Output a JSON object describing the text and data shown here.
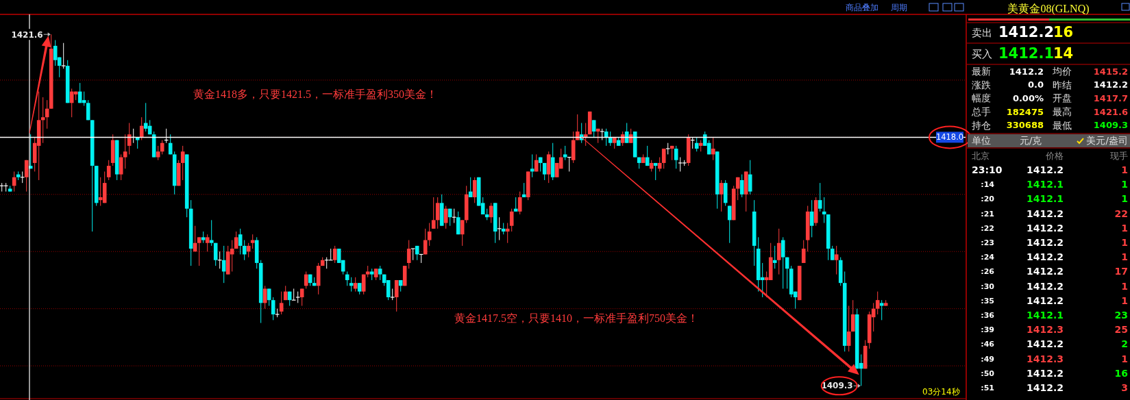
{
  "chart_data": [
    {
      "type": "candlestick",
      "categories": [
        null,
        null,
        null,
        null,
        null,
        null,
        null,
        null,
        null,
        null,
        null,
        null,
        null,
        null,
        null,
        null,
        null,
        null,
        null,
        null,
        null,
        null,
        null,
        null,
        null,
        null,
        null,
        null,
        null,
        null,
        null,
        null,
        null,
        null,
        null,
        null,
        null,
        null,
        null,
        null,
        null,
        null,
        null,
        null,
        null,
        null,
        null,
        null,
        null,
        null,
        null,
        null,
        null,
        null,
        null,
        null,
        null,
        null,
        null,
        null,
        null,
        null,
        null,
        null,
        null,
        null,
        null,
        null,
        null,
        null,
        null,
        null,
        null,
        null,
        null,
        null,
        null,
        null,
        null,
        null,
        null,
        null,
        null,
        null,
        null,
        null,
        null,
        null,
        null,
        null,
        null,
        null,
        null,
        null,
        null,
        null,
        null,
        null,
        null,
        null,
        null,
        null,
        null,
        null,
        null,
        null,
        null,
        null,
        null,
        null,
        null,
        null,
        null,
        null,
        null,
        null,
        null,
        null,
        null,
        null,
        null,
        null,
        null,
        null,
        null,
        null,
        null,
        null,
        null,
        null,
        null,
        null,
        null,
        null,
        null,
        null,
        null,
        null,
        null,
        null,
        null,
        null,
        null,
        null,
        null,
        null,
        null,
        null,
        null,
        null,
        null,
        null,
        null,
        null,
        null,
        null,
        null,
        null,
        null,
        null,
        null,
        null,
        null,
        null,
        null,
        null,
        null,
        null,
        null,
        null,
        null,
        null,
        null,
        null,
        null,
        null,
        null,
        null,
        null,
        null,
        null,
        null,
        null,
        null,
        null,
        null,
        null,
        null,
        null,
        null,
        null,
        null,
        null,
        null,
        null,
        null,
        null,
        null,
        null,
        null,
        null,
        null,
        null,
        null,
        null,
        null,
        null,
        null,
        null,
        null,
        null,
        null,
        null,
        null,
        null,
        null
      ],
      "ohlc": [
        [
          1416.3,
          1416.4,
          1416.1,
          1416.3
        ],
        [
          1416.3,
          1416.4,
          1416.1,
          1416.3
        ],
        [
          1416.2,
          1416.3,
          1416.1,
          1416.1
        ],
        [
          1416.3,
          1416.8,
          1416.1,
          1416.6
        ],
        [
          1416.7,
          1416.8,
          1416.5,
          1416.6
        ],
        [
          1416.6,
          1416.8,
          1416.4,
          1416.6
        ],
        [
          1416.6,
          1417.2,
          1416.1,
          1417.2
        ],
        [
          1417.0,
          1418.1,
          1416.9,
          1416.9
        ],
        [
          1417.1,
          1418.0,
          1416.8,
          1417.8
        ],
        [
          1417.7,
          1419.6,
          1416.5,
          1418.6
        ],
        [
          1418.6,
          1419.4,
          1417.8,
          1418.7
        ],
        [
          1418.7,
          1419.3,
          1418.3,
          1419.0
        ],
        [
          1419.0,
          1421.6,
          1419.0,
          1421.1
        ],
        [
          1421.2,
          1421.4,
          1420.5,
          1420.7
        ],
        [
          1420.8,
          1420.8,
          1420.1,
          1420.5
        ],
        [
          1420.5,
          1421.3,
          1420.4,
          1420.5
        ],
        [
          1420.5,
          1420.7,
          1419.2,
          1419.2
        ],
        [
          1419.2,
          1419.7,
          1418.7,
          1419.6
        ],
        [
          1419.5,
          1419.6,
          1419.3,
          1419.6
        ],
        [
          1419.6,
          1419.9,
          1419.2,
          1419.2
        ],
        [
          1419.3,
          1419.6,
          1419.1,
          1419.2
        ],
        [
          1419.2,
          1419.3,
          1418.6,
          1418.6
        ],
        [
          1418.6,
          1418.6,
          1414.7,
          1417.0
        ],
        [
          1417.0,
          1417.0,
          1415.6,
          1415.7
        ],
        [
          1415.8,
          1416.6,
          1415.6,
          1415.9
        ],
        [
          1415.7,
          1416.8,
          1415.7,
          1416.4
        ],
        [
          1416.6,
          1417.2,
          1416.5,
          1417.0
        ],
        [
          1417.1,
          1418.1,
          1417.0,
          1417.9
        ],
        [
          1417.9,
          1417.9,
          1416.5,
          1416.7
        ],
        [
          1416.7,
          1417.4,
          1416.5,
          1417.3
        ],
        [
          1417.3,
          1418.1,
          1416.9,
          1417.5
        ],
        [
          1417.7,
          1418.5,
          1417.4,
          1418.1
        ],
        [
          1418.0,
          1418.3,
          1417.8,
          1418.0
        ],
        [
          1418.0,
          1418.0,
          1417.6,
          1417.9
        ],
        [
          1418.0,
          1418.7,
          1417.9,
          1418.4
        ],
        [
          1418.5,
          1419.2,
          1418.2,
          1418.3
        ],
        [
          1418.4,
          1418.6,
          1418.1,
          1418.1
        ],
        [
          1418.1,
          1418.2,
          1417.3,
          1417.3
        ],
        [
          1417.3,
          1417.7,
          1417.2,
          1417.5
        ],
        [
          1417.5,
          1417.9,
          1417.4,
          1417.8
        ],
        [
          1417.9,
          1418.3,
          1417.8,
          1417.9
        ],
        [
          1417.8,
          1418.1,
          1417.4,
          1417.4
        ],
        [
          1417.4,
          1417.5,
          1416.0,
          1416.3
        ],
        [
          1416.3,
          1417.2,
          1416.3,
          1417.1
        ],
        [
          1417.1,
          1417.7,
          1416.5,
          1417.5
        ],
        [
          1417.4,
          1417.4,
          1415.2,
          1415.5
        ],
        [
          1415.5,
          1415.8,
          1413.5,
          1414.1
        ],
        [
          1414.0,
          1414.9,
          1414.0,
          1414.3
        ],
        [
          1414.3,
          1414.5,
          1413.5,
          1414.5
        ],
        [
          1414.5,
          1414.7,
          1414.3,
          1414.4
        ],
        [
          1414.3,
          1414.6,
          1414.0,
          1414.5
        ],
        [
          1414.4,
          1415.1,
          1414.2,
          1414.3
        ],
        [
          1414.3,
          1414.3,
          1413.5,
          1413.7
        ],
        [
          1413.7,
          1414.0,
          1413.4,
          1413.7
        ],
        [
          1413.7,
          1414.2,
          1412.9,
          1413.3
        ],
        [
          1413.2,
          1414.2,
          1413.2,
          1414.0
        ],
        [
          1413.9,
          1414.4,
          1413.3,
          1414.1
        ],
        [
          1414.1,
          1414.7,
          1414.1,
          1414.5
        ],
        [
          1414.6,
          1414.8,
          1413.9,
          1414.2
        ],
        [
          1414.2,
          1414.4,
          1413.7,
          1413.9
        ],
        [
          1414.0,
          1414.3,
          1413.8,
          1414.2
        ],
        [
          1414.3,
          1414.6,
          1414.1,
          1414.4
        ],
        [
          1414.4,
          1414.5,
          1413.4,
          1413.6
        ],
        [
          1413.6,
          1413.7,
          1411.5,
          1412.2
        ],
        [
          1412.2,
          1412.8,
          1412.0,
          1412.7
        ],
        [
          1412.7,
          1412.7,
          1412.1,
          1412.3
        ],
        [
          1412.3,
          1412.4,
          1411.6,
          1411.8
        ],
        [
          1411.8,
          1412.0,
          1411.7,
          1411.8
        ],
        [
          1411.9,
          1412.6,
          1411.8,
          1412.2
        ],
        [
          1412.3,
          1412.8,
          1412.3,
          1412.6
        ],
        [
          1412.6,
          1412.6,
          1412.1,
          1412.3
        ],
        [
          1412.3,
          1412.7,
          1412.3,
          1412.3
        ],
        [
          1412.4,
          1412.6,
          1412.2,
          1412.4
        ],
        [
          1412.4,
          1412.7,
          1412.1,
          1412.7
        ],
        [
          1412.8,
          1413.3,
          1412.7,
          1413.2
        ],
        [
          1413.2,
          1413.2,
          1412.8,
          1412.9
        ],
        [
          1412.9,
          1413.1,
          1412.8,
          1412.8
        ],
        [
          1412.8,
          1413.6,
          1412.5,
          1413.5
        ],
        [
          1413.5,
          1413.8,
          1413.5,
          1413.7
        ],
        [
          1413.7,
          1413.8,
          1413.4,
          1413.7
        ],
        [
          1413.7,
          1414.1,
          1413.7,
          1413.7
        ],
        [
          1413.7,
          1414.2,
          1413.6,
          1414.1
        ],
        [
          1414.1,
          1414.1,
          1413.6,
          1413.6
        ],
        [
          1413.7,
          1413.7,
          1413.2,
          1413.3
        ],
        [
          1413.2,
          1413.3,
          1412.8,
          1413.0
        ],
        [
          1412.9,
          1413.1,
          1412.6,
          1412.8
        ],
        [
          1412.7,
          1413.1,
          1412.6,
          1412.9
        ],
        [
          1412.9,
          1412.9,
          1412.5,
          1412.6
        ],
        [
          1412.6,
          1413.2,
          1412.5,
          1413.2
        ],
        [
          1413.2,
          1413.5,
          1413.1,
          1413.3
        ],
        [
          1413.3,
          1413.4,
          1413.0,
          1413.2
        ],
        [
          1413.1,
          1413.4,
          1413.0,
          1413.4
        ],
        [
          1413.4,
          1413.5,
          1413.0,
          1413.2
        ],
        [
          1413.2,
          1413.2,
          1412.8,
          1412.9
        ],
        [
          1413.0,
          1413.0,
          1412.3,
          1412.4
        ],
        [
          1412.4,
          1412.7,
          1412.3,
          1412.4
        ],
        [
          1412.4,
          1413.0,
          1411.9,
          1413.0
        ],
        [
          1413.0,
          1413.0,
          1412.6,
          1412.8
        ],
        [
          1412.8,
          1413.5,
          1412.8,
          1413.5
        ],
        [
          1413.6,
          1414.4,
          1413.4,
          1414.1
        ],
        [
          1414.1,
          1414.1,
          1413.7,
          1414.1
        ],
        [
          1414.2,
          1414.2,
          1413.7,
          1413.9
        ],
        [
          1413.9,
          1413.9,
          1413.6,
          1413.9
        ],
        [
          1413.9,
          1414.8,
          1413.9,
          1414.4
        ],
        [
          1414.4,
          1415.0,
          1414.2,
          1414.7
        ],
        [
          1414.8,
          1415.9,
          1414.8,
          1415.1
        ],
        [
          1415.1,
          1415.9,
          1414.8,
          1415.7
        ],
        [
          1415.7,
          1416.0,
          1414.9,
          1414.9
        ],
        [
          1415.0,
          1415.6,
          1414.8,
          1415.5
        ],
        [
          1415.5,
          1415.5,
          1414.9,
          1415.2
        ],
        [
          1415.2,
          1415.5,
          1415.0,
          1415.2
        ],
        [
          1415.2,
          1415.4,
          1414.6,
          1414.6
        ],
        [
          1414.6,
          1415.1,
          1414.2,
          1415.1
        ],
        [
          1415.1,
          1416.3,
          1415.0,
          1416.0
        ],
        [
          1416.1,
          1416.6,
          1415.9,
          1415.9
        ],
        [
          1415.9,
          1416.6,
          1415.7,
          1416.5
        ],
        [
          1416.6,
          1416.6,
          1415.6,
          1415.6
        ],
        [
          1415.7,
          1415.9,
          1415.3,
          1415.3
        ],
        [
          1415.3,
          1415.5,
          1415.1,
          1415.2
        ],
        [
          1415.2,
          1415.7,
          1415.0,
          1415.6
        ],
        [
          1415.7,
          1415.7,
          1414.3,
          1414.7
        ],
        [
          1414.8,
          1415.2,
          1414.4,
          1414.8
        ],
        [
          1414.8,
          1415.0,
          1414.6,
          1414.7
        ],
        [
          1414.7,
          1415.0,
          1414.3,
          1414.8
        ],
        [
          1414.9,
          1415.5,
          1414.7,
          1415.4
        ],
        [
          1415.5,
          1415.9,
          1415.4,
          1415.4
        ],
        [
          1415.4,
          1416.1,
          1415.3,
          1415.9
        ],
        [
          1416.0,
          1416.4,
          1415.9,
          1415.9
        ],
        [
          1415.9,
          1416.8,
          1415.8,
          1416.8
        ],
        [
          1416.9,
          1417.4,
          1416.6,
          1416.8
        ],
        [
          1416.8,
          1417.4,
          1416.8,
          1417.2
        ],
        [
          1417.3,
          1417.3,
          1416.8,
          1417.1
        ],
        [
          1417.1,
          1417.1,
          1416.5,
          1416.7
        ],
        [
          1416.7,
          1417.5,
          1416.4,
          1417.4
        ],
        [
          1417.3,
          1417.8,
          1416.5,
          1416.6
        ],
        [
          1416.6,
          1417.1,
          1416.6,
          1417.1
        ],
        [
          1416.9,
          1417.6,
          1416.9,
          1417.3
        ],
        [
          1417.4,
          1417.7,
          1417.2,
          1417.3
        ],
        [
          1417.3,
          1417.3,
          1416.8,
          1417.3
        ],
        [
          1417.2,
          1418.2,
          1417.1,
          1417.9
        ],
        [
          1417.9,
          1418.8,
          1417.9,
          1418.2
        ],
        [
          1418.1,
          1418.5,
          1417.8,
          1417.9
        ],
        [
          1418.0,
          1418.5,
          1417.7,
          1418.1
        ],
        [
          1418.1,
          1418.9,
          1418.1,
          1418.9
        ],
        [
          1418.6,
          1418.6,
          1418.0,
          1418.2
        ],
        [
          1418.2,
          1418.3,
          1417.8,
          1418.3
        ],
        [
          1418.2,
          1418.3,
          1417.9,
          1418.2
        ],
        [
          1418.2,
          1418.3,
          1417.7,
          1418.0
        ],
        [
          1418.0,
          1418.2,
          1417.7,
          1417.8
        ],
        [
          1417.8,
          1418.0,
          1417.6,
          1418.0
        ],
        [
          1417.9,
          1418.0,
          1417.7,
          1417.7
        ],
        [
          1417.8,
          1418.2,
          1417.7,
          1418.1
        ],
        [
          1418.2,
          1418.5,
          1417.8,
          1417.8
        ],
        [
          1417.8,
          1418.3,
          1417.8,
          1418.1
        ],
        [
          1418.2,
          1418.2,
          1417.3,
          1417.3
        ],
        [
          1417.3,
          1417.3,
          1416.9,
          1417.1
        ],
        [
          1417.1,
          1417.4,
          1417.1,
          1417.3
        ],
        [
          1417.3,
          1417.7,
          1417.0,
          1417.0
        ],
        [
          1416.9,
          1417.2,
          1416.8,
          1417.1
        ],
        [
          1417.1,
          1417.1,
          1416.5,
          1417.0
        ],
        [
          1416.9,
          1417.3,
          1416.8,
          1417.1
        ],
        [
          1417.1,
          1417.6,
          1416.9,
          1417.6
        ],
        [
          1417.6,
          1417.8,
          1417.4,
          1417.6
        ],
        [
          1417.6,
          1417.7,
          1417.2,
          1417.7
        ],
        [
          1417.6,
          1417.7,
          1416.9,
          1417.2
        ],
        [
          1417.1,
          1417.3,
          1416.8,
          1417.1
        ],
        [
          1417.1,
          1417.2,
          1417.0,
          1417.1
        ],
        [
          1417.1,
          1418.1,
          1417.0,
          1418.0
        ],
        [
          1417.9,
          1418.0,
          1417.6,
          1417.9
        ],
        [
          1417.8,
          1418.0,
          1417.5,
          1417.6
        ],
        [
          1417.7,
          1417.9,
          1417.5,
          1417.8
        ],
        [
          1418.1,
          1418.2,
          1417.7,
          1417.7
        ],
        [
          1417.8,
          1417.9,
          1417.4,
          1417.4
        ],
        [
          1417.4,
          1418.0,
          1417.2,
          1417.6
        ],
        [
          1417.5,
          1417.5,
          1415.5,
          1416.0
        ],
        [
          1416.0,
          1416.5,
          1415.4,
          1416.4
        ],
        [
          1416.4,
          1416.5,
          1415.6,
          1415.7
        ],
        [
          1415.6,
          1415.6,
          1414.3,
          1415.1
        ],
        [
          1415.1,
          1416.3,
          1415.1,
          1416.2
        ],
        [
          1416.2,
          1416.6,
          1415.8,
          1416.6
        ],
        [
          1416.5,
          1416.7,
          1415.9,
          1416.0
        ],
        [
          1416.0,
          1416.8,
          1415.4,
          1416.8
        ],
        [
          1416.7,
          1417.2,
          1416.0,
          1416.1
        ],
        [
          1415.4,
          1415.8,
          1413.5,
          1414.2
        ],
        [
          1414.1,
          1414.5,
          1412.6,
          1413.0
        ],
        [
          1413.1,
          1413.6,
          1412.4,
          1413.0
        ],
        [
          1413.0,
          1413.3,
          1412.4,
          1413.1
        ],
        [
          1413.0,
          1414.3,
          1413.0,
          1413.8
        ],
        [
          1413.7,
          1414.2,
          1413.4,
          1413.6
        ],
        [
          1413.7,
          1414.8,
          1413.2,
          1414.3
        ],
        [
          1414.4,
          1414.5,
          1412.7,
          1413.8
        ],
        [
          1413.8,
          1413.8,
          1412.7,
          1413.4
        ],
        [
          1413.4,
          1413.5,
          1412.4,
          1412.5
        ],
        [
          1412.6,
          1412.6,
          1412.0,
          1412.4
        ],
        [
          1412.3,
          1413.5,
          1412.3,
          1413.5
        ],
        [
          1413.6,
          1414.4,
          1413.6,
          1414.1
        ],
        [
          1414.4,
          1415.6,
          1414.0,
          1415.4
        ],
        [
          1415.4,
          1415.8,
          1414.5,
          1414.9
        ],
        [
          1415.0,
          1415.9,
          1414.9,
          1415.8
        ],
        [
          1415.8,
          1416.4,
          1415.4,
          1415.5
        ],
        [
          1415.4,
          1415.9,
          1415.0,
          1415.3
        ],
        [
          1415.3,
          1415.3,
          1413.7,
          1414.1
        ],
        [
          1414.1,
          1414.2,
          1413.7,
          1413.7
        ],
        [
          1413.7,
          1414.2,
          1413.2,
          1413.9
        ],
        [
          1413.7,
          1413.8,
          1412.8,
          1412.9
        ],
        [
          1412.9,
          1413.3,
          1410.5,
          1410.7
        ],
        [
          1410.7,
          1412.1,
          1410.5,
          1411.2
        ],
        [
          1411.2,
          1412.3,
          1411.2,
          1411.8
        ],
        [
          1411.8,
          1412.0,
          1409.9,
          1409.9
        ],
        [
          1410.1,
          1410.4,
          1409.3,
          1409.9
        ],
        [
          1409.9,
          1410.9,
          1409.9,
          1410.7
        ],
        [
          1410.8,
          1411.9,
          1410.6,
          1411.8
        ],
        [
          1411.7,
          1412.2,
          1411.2,
          1412.0
        ],
        [
          1412.0,
          1412.6,
          1411.8,
          1412.3
        ],
        [
          1412.2,
          1412.3,
          1411.6,
          1412.1
        ],
        [
          1412.1,
          1412.3,
          1412.1,
          1412.2
        ]
      ],
      "ylim": [
        1408.9,
        1422.3
      ],
      "yticks": [
        {
          "value": 1410,
          "label": null
        },
        {
          "value": 1412,
          "label": null
        },
        {
          "value": 1414,
          "label": null
        },
        {
          "value": 1416,
          "label": null
        },
        {
          "value": 1418,
          "label": null
        },
        {
          "value": 1420,
          "label": null
        }
      ],
      "grid": "y",
      "ref_lines": [
        {
          "axis": "y",
          "value": 1418.0,
          "label": "1418.0",
          "color": "#ffffff"
        }
      ],
      "annotations": [
        "1421.6",
        "1409.3",
        "黄金1418多，只要1421.5，一标准手盈利350美金！",
        "黄金1417.5空，只要1410，一标准手盈利750美金！",
        "03分14秒",
        "商品叠加",
        "周期"
      ]
    },
    {
      "type": "other",
      "title": "美黄金08(GLNQ)",
      "annotations": [
        "卖出",
        "1412.2",
        "16",
        "买入",
        "1412.1",
        "14",
        "最新",
        "1412.2",
        "均价",
        "1415.2",
        "涨跌",
        "0.0",
        "昨结",
        "1412.2",
        "幅度",
        "0.00%",
        "开盘",
        "1417.7",
        "总手",
        "182475",
        "最高",
        "1421.6",
        "持仓",
        "330688",
        "最低",
        "1409.3",
        "单位",
        "元/克",
        "美元/盎司",
        "北京",
        "价格",
        "现手",
        "23:10",
        "1412.2",
        "1",
        ":14",
        "1412.1",
        "1",
        ":20",
        "1412.1",
        "1",
        ":21",
        "1412.2",
        "22",
        ":22",
        "1412.2",
        "1",
        ":23",
        "1412.2",
        "1",
        ":24",
        "1412.2",
        "1",
        ":26",
        "1412.2",
        "17",
        ":30",
        "1412.2",
        "1",
        ":35",
        "1412.2",
        "1",
        ":36",
        "1412.1",
        "23",
        ":39",
        "1412.3",
        "25",
        ":46",
        "1412.2",
        "2",
        ":49",
        "1412.3",
        "1",
        ":50",
        "1412.2",
        "16",
        ":51",
        "1412.2",
        "3"
      ]
    }
  ]
}
